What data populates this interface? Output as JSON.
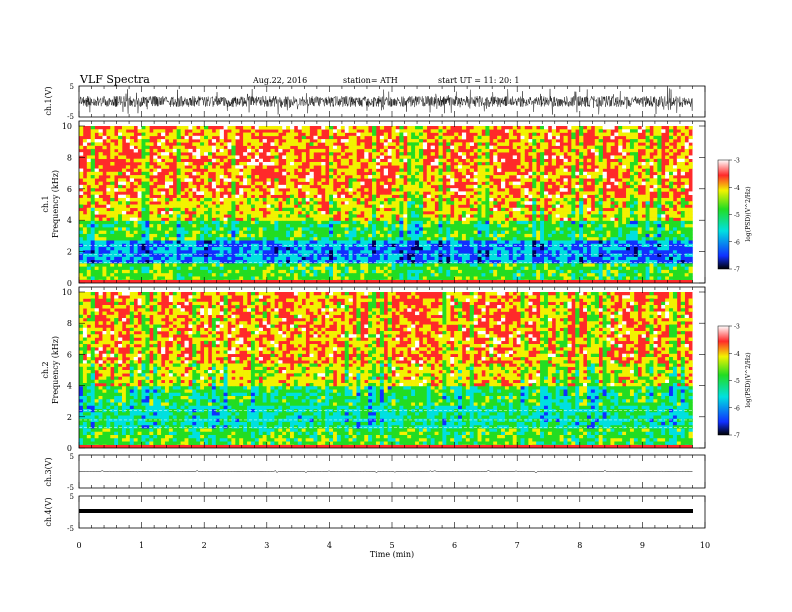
{
  "header": {
    "title": "VLF  Spectra",
    "date": "Aug.22, 2016",
    "station": "station= ATH",
    "start": "start  UT  =   11: 20: 1"
  },
  "chart_data": [
    {
      "type": "line",
      "ylabel": "ch.1(V)",
      "ylim": [
        -5,
        5
      ],
      "yticks": [
        "5",
        "-5"
      ],
      "x_range_min": [
        0,
        9.8
      ],
      "description_of_series": "dense noisy waveform around ~0 V with peaks near ±2.5 V"
    },
    {
      "type": "heatmap",
      "ylabel_top": "ch.1",
      "ylabel": "Frequency  (kHz)",
      "ylim": [
        0,
        10
      ],
      "yticks": [
        "0",
        "2",
        "4",
        "6",
        "8",
        "10"
      ],
      "colorbar": {
        "ticks": [
          "-3",
          "-4",
          "-5",
          "-6",
          "-7"
        ],
        "label": "log(PSD)(V^2/Hz)",
        "range": [
          -7,
          -3
        ]
      }
    },
    {
      "type": "heatmap",
      "ylabel_top": "ch.2",
      "ylabel": "Frequency  (kHz)",
      "ylim": [
        0,
        10
      ],
      "yticks": [
        "0",
        "2",
        "4",
        "6",
        "8",
        "10"
      ],
      "colorbar": {
        "ticks": [
          "-3",
          "-4",
          "-5",
          "-6",
          "-7"
        ],
        "label": "log(PSD)(V^2/Hz)",
        "range": [
          -7,
          -3
        ]
      }
    },
    {
      "type": "line",
      "ylabel": "ch.3(V)",
      "ylim": [
        -5,
        5
      ],
      "yticks": [
        "5",
        "-5"
      ]
    },
    {
      "type": "line",
      "ylabel": "ch.4(V)",
      "ylim": [
        -5,
        5
      ],
      "yticks": [
        "5",
        "-5"
      ]
    }
  ],
  "xaxis": {
    "label": "Time  (min)",
    "ticks": [
      "0",
      "1",
      "2",
      "3",
      "4",
      "5",
      "6",
      "7",
      "8",
      "9",
      "10"
    ],
    "range": [
      0,
      10
    ]
  },
  "colors": {
    "red": "#ff2a2a",
    "yellow": "#f2f200",
    "green": "#22dd22",
    "cyan": "#00e0e0",
    "blue": "#1030ff",
    "dark": "#000060"
  }
}
